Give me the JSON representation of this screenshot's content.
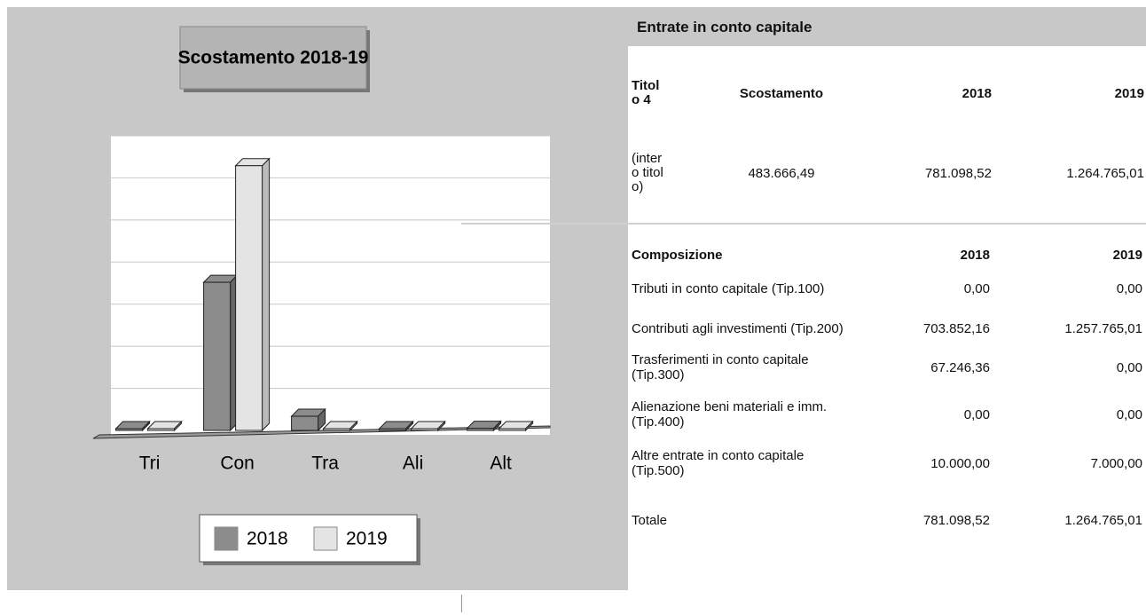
{
  "chart_data": {
    "type": "bar",
    "title": "Scostamento 2018-19",
    "categories": [
      "Tri",
      "Con",
      "Tra",
      "Ali",
      "Alt"
    ],
    "series": [
      {
        "name": "2018",
        "color": "#8c8c8c",
        "values": [
          0,
          703852.16,
          67246.36,
          0,
          10000
        ]
      },
      {
        "name": "2019",
        "color": "#e4e4e4",
        "values": [
          0,
          1257765.01,
          0,
          0,
          7000
        ]
      }
    ],
    "ylim": [
      0,
      1400000
    ],
    "yticks": [
      0,
      200000,
      400000,
      600000,
      800000,
      1000000,
      1200000,
      1400000
    ],
    "grid": true
  },
  "header": {
    "title": "Entrate in conto capitale"
  },
  "summary": {
    "columns": [
      "Titolo 4",
      "Scostamento",
      "2018",
      "2019"
    ],
    "row": [
      "(intero titolo)",
      "483.666,49",
      "781.098,52",
      "1.264.765,01"
    ]
  },
  "composition": {
    "columns": [
      "Composizione",
      "2018",
      "2019"
    ],
    "rows": [
      [
        "Tributi in conto capitale (Tip.100)",
        "0,00",
        "0,00"
      ],
      [
        "Contributi agli investimenti (Tip.200)",
        "703.852,16",
        "1.257.765,01"
      ],
      [
        "Trasferimenti in conto capitale (Tip.300)",
        "67.246,36",
        "0,00"
      ],
      [
        "Alienazione beni materiali e imm. (Tip.400)",
        "0,00",
        "0,00"
      ],
      [
        "Altre entrate in conto capitale (Tip.500)",
        "10.000,00",
        "7.000,00"
      ]
    ],
    "total": [
      "Totale",
      "781.098,52",
      "1.264.765,01"
    ]
  }
}
